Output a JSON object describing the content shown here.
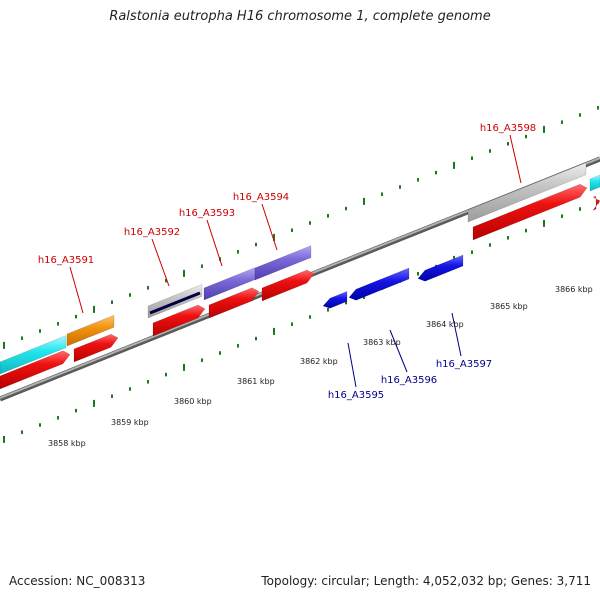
{
  "title": "Ralstonia eutropha H16 chromosome 1, complete genome",
  "footer": {
    "accession": "Accession: NC_008313",
    "topology": "Topology: circular; Length: 4,052,032 bp; Genes: 3,711"
  },
  "colors": {
    "backbone": "#8a8a8a",
    "tick": "#1a7a1a",
    "label_top": "#cc0000",
    "label_bottom": "#00008b",
    "cds": "#ee1111",
    "cyan": "#22e6ee",
    "orange": "#f39410",
    "grey": "#bfbfbf",
    "purple": "#7b68d8",
    "blue": "#1515e6"
  },
  "kbp_labels": [
    "3858 kbp",
    "3859 kbp",
    "3860 kbp",
    "3861 kbp",
    "3862 kbp",
    "3863 kbp",
    "3864 kbp",
    "3865 kbp",
    "3866 kbp"
  ],
  "genes": {
    "top": [
      "h16_A3591",
      "h16_A3592",
      "h16_A3593",
      "h16_A3594",
      "h16_A3598"
    ],
    "bottom": [
      "h16_A3595",
      "h16_A3596",
      "h16_A3597"
    ]
  }
}
